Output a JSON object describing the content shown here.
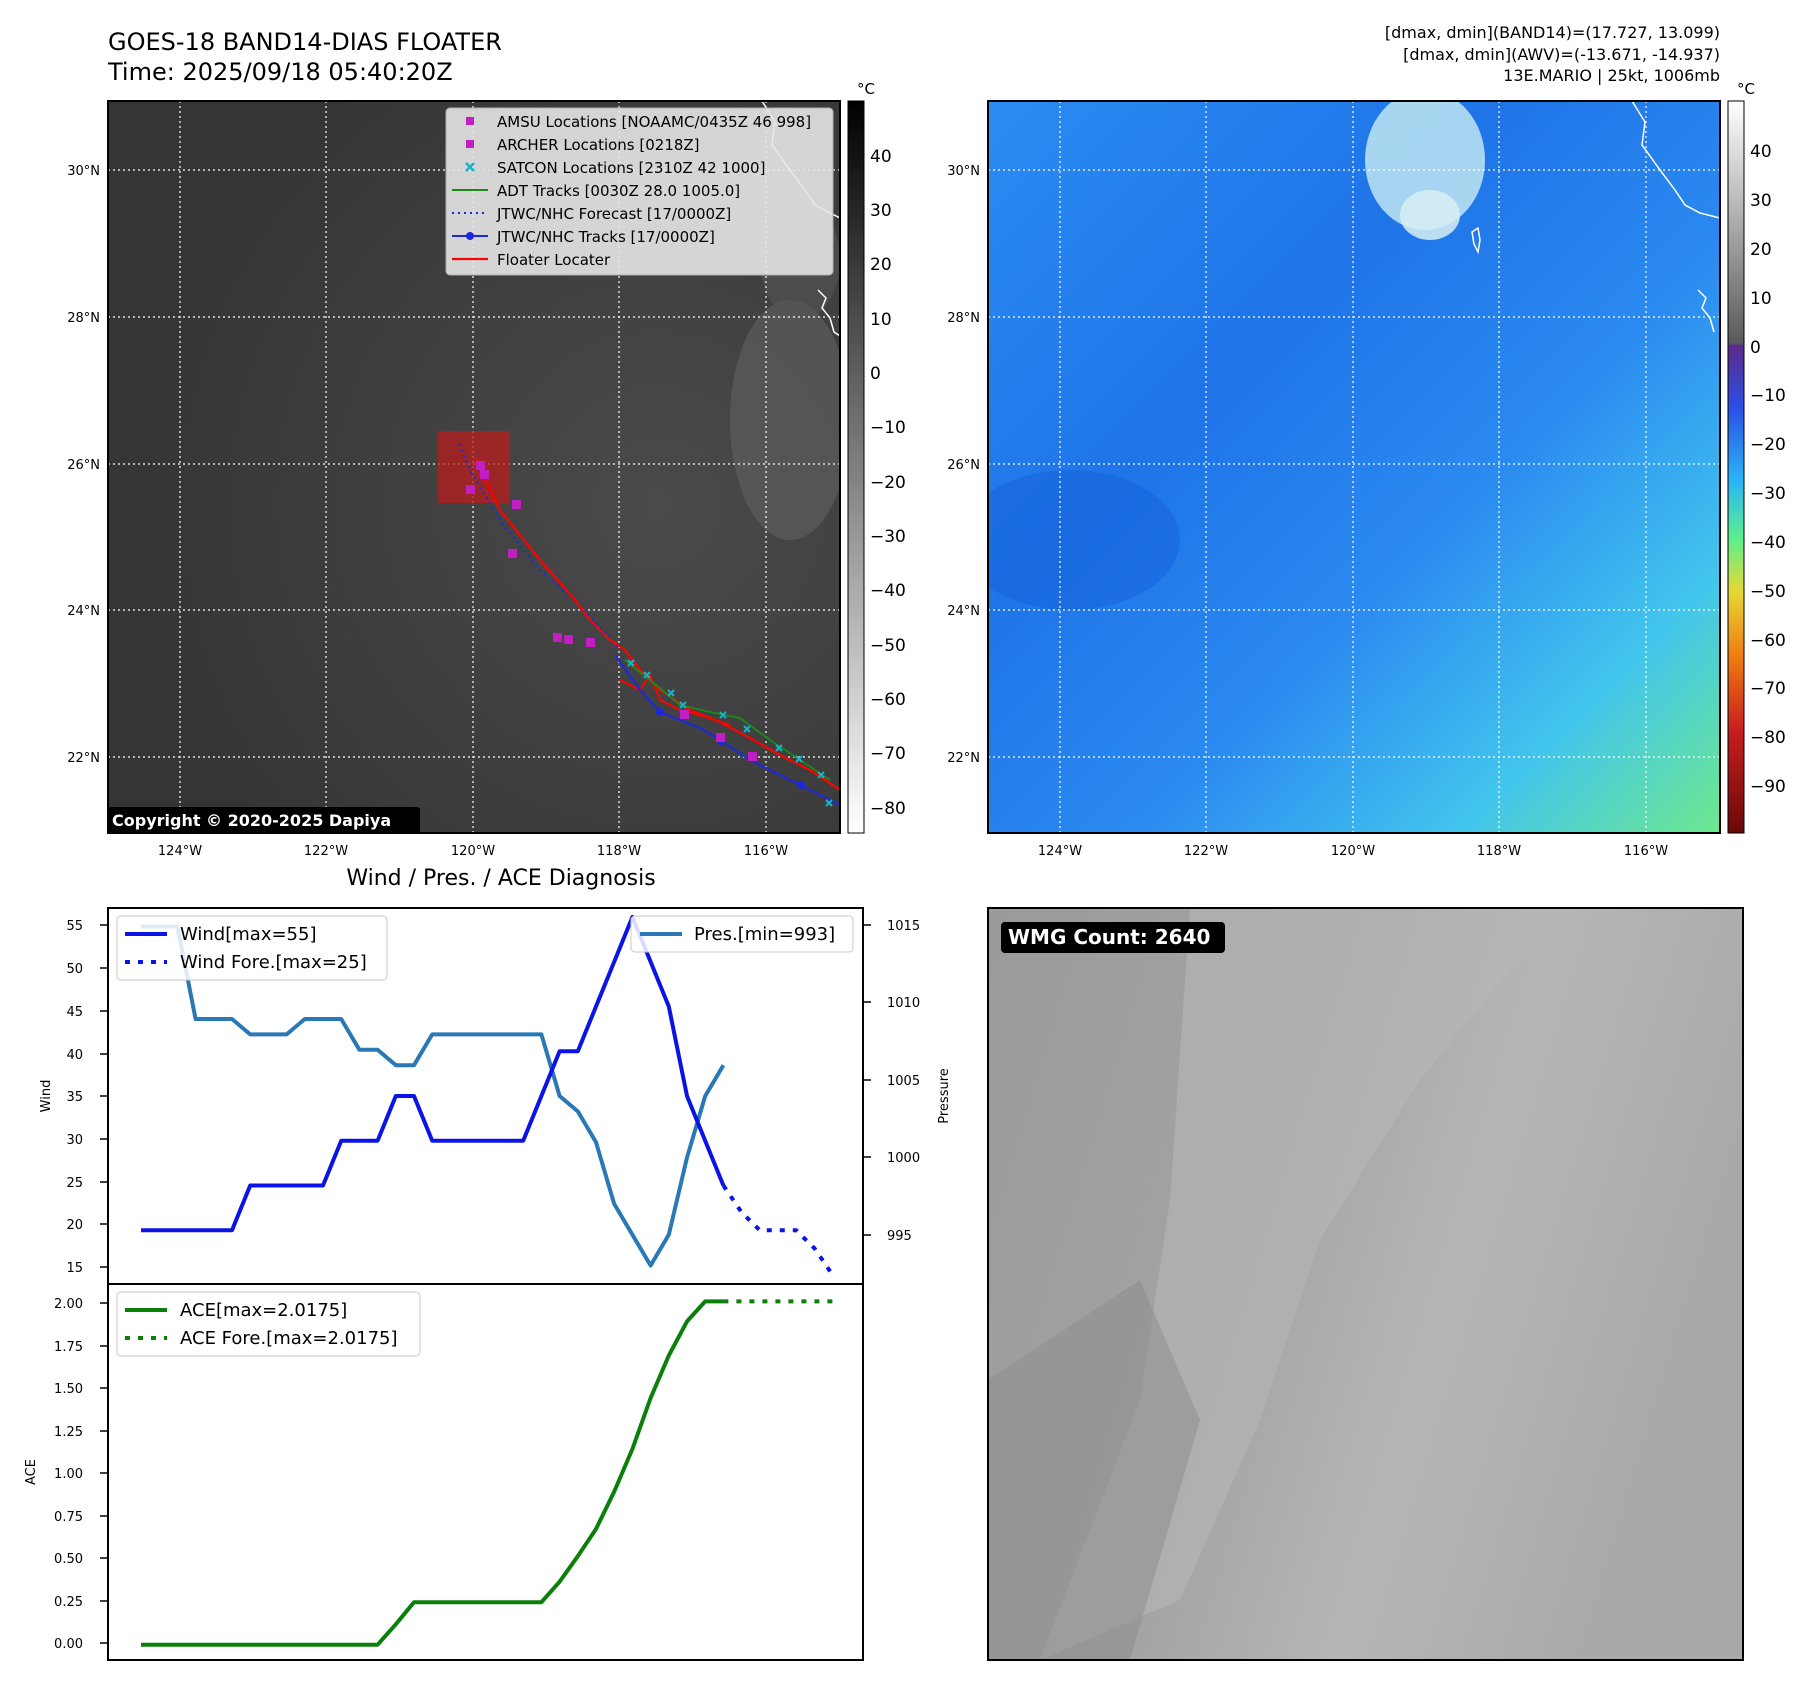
{
  "header": {
    "title_line1": "GOES-18 BAND14-DIAS FLOATER",
    "title_line2": "Time: 2025/09/18 05:40:20Z",
    "stats_line1": "[dmax, dmin](BAND14)=(17.727, 13.099)",
    "stats_line2": "[dmax, dmin](AWV)=(-13.671, -14.937)",
    "storm_info": "13E.MARIO | 25kt, 1006mb"
  },
  "colors": {
    "wind": "#0a14e6",
    "pressure": "#2a78b5",
    "ace": "#0a800a",
    "floater": "#ff0000",
    "amsu": "#c21fc2",
    "satcon": "#19b2c8",
    "adt": "#1a8a1a",
    "jtwc": "#1a28e0"
  },
  "maps": {
    "lat_labels": [
      "30°N",
      "28°N",
      "26°N",
      "24°N",
      "22°N"
    ],
    "lon_labels": [
      "124°W",
      "122°W",
      "120°W",
      "118°W",
      "116°W"
    ],
    "legend": [
      {
        "label": "AMSU Locations [NOAAMC/0435Z 46 998]",
        "icon": "magenta-square-marker"
      },
      {
        "label": "ARCHER Locations [0218Z]",
        "icon": "magenta-square-marker"
      },
      {
        "label": "SATCON Locations [2310Z 42 1000]",
        "icon": "cyan-x-marker"
      },
      {
        "label": "ADT Tracks [0030Z 28.0 1005.0]",
        "icon": "green-line"
      },
      {
        "label": "JTWC/NHC Forecast [17/0000Z]",
        "icon": "blue-dotted-line"
      },
      {
        "label": "JTWC/NHC Tracks [17/0000Z]",
        "icon": "blue-line-dot"
      },
      {
        "label": "Floater Locater",
        "icon": "red-line"
      }
    ],
    "copyright": "Copyright © 2020-2025 Dapiya",
    "unit": "°C",
    "cbar_gray_ticks": [
      "40",
      "30",
      "20",
      "10",
      "0",
      "−10",
      "−20",
      "−30",
      "−40",
      "−50",
      "−60",
      "−70",
      "−80"
    ],
    "cbar_color_ticks": [
      "40",
      "30",
      "20",
      "10",
      "0",
      "−10",
      "−20",
      "−30",
      "−40",
      "−50",
      "−60",
      "−70",
      "−80",
      "−90"
    ]
  },
  "diag": {
    "title": "Wind / Pres. / ACE Diagnosis",
    "wind_ylabel": "Wind",
    "pres_ylabel": "Pressure",
    "ace_ylabel": "ACE",
    "legend_wind": "Wind[max=55]",
    "legend_wind_fore": "Wind Fore.[max=25]",
    "legend_pres": "Pres.[min=993]",
    "legend_ace": "ACE[max=2.0175]",
    "legend_ace_fore": "ACE Fore.[max=2.0175]",
    "wind_ticks": [
      "55",
      "50",
      "45",
      "40",
      "35",
      "30",
      "25",
      "20",
      "15"
    ],
    "pres_ticks": [
      "1015",
      "1010",
      "1005",
      "1000",
      "995"
    ],
    "ace_ticks": [
      "2.00",
      "1.75",
      "1.50",
      "1.25",
      "1.00",
      "0.75",
      "0.50",
      "0.25",
      "0.00"
    ]
  },
  "wmg": {
    "label": "WMG Count: 2640"
  },
  "chart_data": [
    {
      "type": "line",
      "title": "Wind / Pres. / ACE Diagnosis",
      "ylabel": "Wind",
      "ylim": [
        14,
        56
      ],
      "series": [
        {
          "name": "Wind[max=55]",
          "x": [
            0,
            1,
            2,
            3,
            4,
            5,
            6,
            7,
            8,
            9,
            10,
            11,
            12,
            13,
            14,
            15,
            16,
            17,
            18,
            19,
            20,
            21,
            22,
            23,
            24,
            25,
            26,
            27,
            28,
            29,
            30,
            31,
            32
          ],
          "values": [
            20,
            20,
            20,
            20,
            20,
            20,
            25,
            25,
            25,
            25,
            25,
            30,
            30,
            30,
            35,
            35,
            30,
            30,
            30,
            30,
            30,
            30,
            35,
            40,
            40,
            45,
            50,
            55,
            50,
            45,
            35,
            30,
            25
          ]
        },
        {
          "name": "Wind Fore.[max=25]",
          "x": [
            32,
            33,
            34,
            35,
            36,
            37,
            38
          ],
          "values": [
            25,
            22,
            20,
            20,
            20,
            18,
            15
          ]
        }
      ]
    },
    {
      "type": "line",
      "ylabel": "Pressure",
      "ylim": [
        991.8,
        1016.2
      ],
      "series": [
        {
          "name": "Pres.[min=993]",
          "x": [
            0,
            1,
            2,
            3,
            4,
            5,
            6,
            7,
            8,
            9,
            10,
            11,
            12,
            13,
            14,
            15,
            16,
            17,
            18,
            19,
            20,
            21,
            22,
            23,
            24,
            25,
            26,
            27,
            28,
            29,
            30,
            31,
            32
          ],
          "values": [
            1015,
            1015,
            1015,
            1009,
            1009,
            1009,
            1008,
            1008,
            1008,
            1009,
            1009,
            1009,
            1007,
            1007,
            1006,
            1006,
            1008,
            1008,
            1008,
            1008,
            1008,
            1008,
            1008,
            1004,
            1003,
            1001,
            997,
            995,
            993,
            995,
            1000,
            1004,
            1006
          ]
        }
      ]
    },
    {
      "type": "area",
      "ylabel": "ACE",
      "ylim": [
        -0.09,
        2.12
      ],
      "series": [
        {
          "name": "ACE[max=2.0175]",
          "x": [
            0,
            1,
            2,
            3,
            4,
            5,
            6,
            7,
            8,
            9,
            10,
            11,
            12,
            13,
            14,
            15,
            16,
            17,
            18,
            19,
            20,
            21,
            22,
            23,
            24,
            25,
            26,
            27,
            28,
            29,
            30,
            31,
            32
          ],
          "values": [
            0,
            0,
            0,
            0,
            0,
            0,
            0,
            0,
            0,
            0,
            0,
            0,
            0,
            0,
            0.12,
            0.25,
            0.25,
            0.25,
            0.25,
            0.25,
            0.25,
            0.25,
            0.25,
            0.37,
            0.52,
            0.68,
            0.9,
            1.15,
            1.45,
            1.7,
            1.9,
            2.0175,
            2.0175
          ]
        },
        {
          "name": "ACE Fore.[max=2.0175]",
          "x": [
            32,
            33,
            34,
            35,
            36,
            37,
            38
          ],
          "values": [
            2.0175,
            2.0175,
            2.0175,
            2.0175,
            2.0175,
            2.0175,
            2.0175
          ]
        }
      ]
    }
  ]
}
